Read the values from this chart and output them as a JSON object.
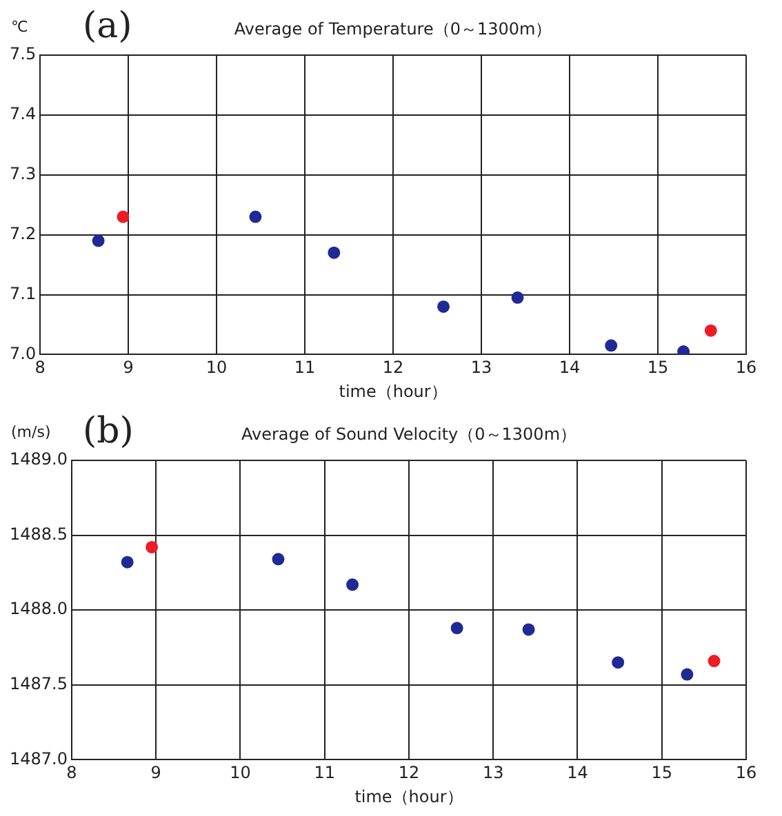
{
  "chart_data": [
    {
      "type": "scatter",
      "title": "Average of Temperature（0～1300m）",
      "xlabel": "time（hour）",
      "ylabel": "℃",
      "annotations": [
        "(a)"
      ],
      "marker": "circle",
      "grid": true,
      "legend": false,
      "xlim": [
        8,
        16
      ],
      "xticks": [
        8,
        9,
        10,
        11,
        12,
        13,
        14,
        15,
        16
      ],
      "ylim": [
        7.0,
        7.5
      ],
      "yticks": [
        {
          "value": 7.0,
          "label": "7.0"
        },
        7.1,
        7.2,
        7.3,
        7.4,
        7.5
      ],
      "series": [
        {
          "color": "#1f2a96",
          "x": [
            8.66,
            10.44,
            11.33,
            12.57,
            13.41,
            14.47,
            15.29
          ],
          "values": [
            7.19,
            7.23,
            7.17,
            7.08,
            7.095,
            7.015,
            7.005
          ]
        },
        {
          "color": "#ee1c24",
          "x": [
            8.94,
            15.6
          ],
          "values": [
            7.23,
            7.04
          ]
        }
      ]
    },
    {
      "type": "scatter",
      "title": "Average of Sound Velocity（0～1300m）",
      "xlabel": "time（hour）",
      "ylabel": "(m/s)",
      "annotations": [
        "(b)"
      ],
      "marker": "circle",
      "grid": true,
      "legend": false,
      "xlim": [
        8,
        16
      ],
      "xticks": [
        8,
        9,
        10,
        11,
        12,
        13,
        14,
        15,
        16
      ],
      "ylim": [
        1487.0,
        1489.0
      ],
      "yticks": [
        {
          "value": 1487.0,
          "label": "1487.0"
        },
        1487.5,
        {
          "value": 1488.0,
          "label": "1488.0"
        },
        1488.5,
        {
          "value": 1489.0,
          "label": "1489.0"
        }
      ],
      "series": [
        {
          "color": "#1f2a96",
          "x": [
            8.66,
            10.45,
            11.33,
            12.57,
            13.42,
            14.48,
            15.3
          ],
          "values": [
            1488.32,
            1488.34,
            1488.17,
            1487.88,
            1487.87,
            1487.65,
            1487.57
          ]
        },
        {
          "color": "#ee1c24",
          "x": [
            8.95,
            15.62
          ],
          "values": [
            1488.42,
            1487.66
          ]
        }
      ]
    }
  ]
}
